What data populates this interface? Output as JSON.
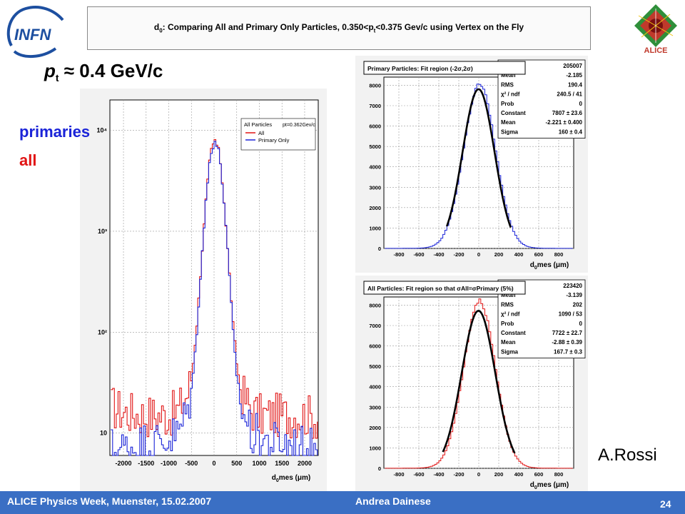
{
  "header": {
    "title": "d0: Comparing All and Primary Only Particles, 0.350<pt<0.375 Gev/c using Vertex on the Fly",
    "title_parts": {
      "d": "d",
      "d_sub": "0",
      "t1": ": Comparing All and Primary Only Particles, 0.350<p",
      "t_sub": "t",
      "t2": "<0.375 Gev/c using Vertex on the Fly"
    },
    "logo_left": "INFN",
    "logo_right": "ALICE"
  },
  "labels": {
    "pt_p": "p",
    "pt_sub": "t",
    "pt_rest": " ≈ 0.4 GeV/c",
    "primaries": "primaries",
    "all": "all",
    "author": "A.Rossi"
  },
  "footer": {
    "left": "ALICE Physics Week, Muenster, 15.02.2007",
    "mid": "Andrea Dainese",
    "page": "24"
  },
  "colors": {
    "primary": "#1a23d8",
    "all": "#e11414",
    "fit": "#000000",
    "footer": "#3a6fc4"
  },
  "chart_data": [
    {
      "type": "line",
      "log_y": true,
      "xlabel": "d0mes (μm)",
      "xlim": [
        -2300,
        2300
      ],
      "ylim": [
        6,
        20000
      ],
      "xticks": [
        -2000,
        -1500,
        -1000,
        -500,
        0,
        500,
        1000,
        1500,
        2000
      ],
      "yticks": [
        10,
        100,
        1000,
        10000
      ],
      "ytick_labels": [
        "10",
        "10²",
        "10³",
        "10⁴"
      ],
      "grid": true,
      "legend": {
        "title": "All Particles",
        "pt_note": "pt=0.362Gev/c",
        "entries": [
          "All",
          "Primary Only"
        ],
        "placement": "top-right"
      },
      "series": [
        {
          "name": "All",
          "x": [
            -2250,
            -2000,
            -1500,
            -1200,
            -1000,
            -800,
            -600,
            -500,
            -400,
            -300,
            -200,
            -100,
            0,
            100,
            200,
            300,
            400,
            500,
            600,
            800,
            1000,
            1200,
            1500,
            2000,
            2250
          ],
          "values": [
            18,
            16,
            15,
            15,
            15,
            17,
            25,
            40,
            120,
            500,
            2000,
            6000,
            8000,
            6000,
            2000,
            500,
            120,
            40,
            25,
            17,
            15,
            15,
            15,
            15,
            14
          ]
        },
        {
          "name": "Primary Only",
          "x": [
            -2250,
            -2000,
            -1500,
            -1200,
            -1000,
            -800,
            -600,
            -500,
            -400,
            -300,
            -200,
            -100,
            0,
            100,
            200,
            300,
            400,
            500,
            600,
            800,
            1000,
            1200,
            1500,
            2000,
            2250
          ],
          "values": [
            7,
            7,
            8,
            8,
            9,
            10,
            17,
            30,
            100,
            480,
            1950,
            5900,
            7800,
            5900,
            1950,
            480,
            100,
            30,
            17,
            10,
            9,
            8,
            8,
            7,
            7
          ]
        }
      ]
    },
    {
      "type": "line",
      "title": "Primary Particles: Fit region (-2σ,2σ)",
      "xlabel": "d0mes (μm)",
      "xlim": [
        -950,
        950
      ],
      "ylim": [
        0,
        8400
      ],
      "xticks": [
        -800,
        -600,
        -400,
        -200,
        0,
        200,
        400,
        600,
        800
      ],
      "yticks": [
        0,
        1000,
        2000,
        3000,
        4000,
        5000,
        6000,
        7000,
        8000
      ],
      "grid": true,
      "stats": [
        [
          "Entries",
          "205007"
        ],
        [
          "Mean",
          "-2.185"
        ],
        [
          "RMS",
          "190.4"
        ],
        [
          "χ² / ndf",
          "240.5 / 41"
        ],
        [
          "Prob",
          "0"
        ],
        [
          "Constant",
          "7807 ± 23.6"
        ],
        [
          "Mean",
          "-2.221 ± 0.400"
        ],
        [
          "Sigma",
          "160 ± 0.4"
        ]
      ],
      "histogram": {
        "name": "Primary",
        "mean": -2.185,
        "sigma": 160,
        "amplitude": 7950
      },
      "fit": {
        "name": "Gaussian fit",
        "constant": 7807,
        "mean": -2.221,
        "sigma": 160,
        "range": [
          -320,
          320
        ]
      }
    },
    {
      "type": "line",
      "title": "All Particles: Fit region so that σAll=σPrimary (5%)",
      "xlabel": "d0mes (μm)",
      "xlim": [
        -950,
        950
      ],
      "ylim": [
        0,
        8400
      ],
      "xticks": [
        -800,
        -600,
        -400,
        -200,
        0,
        200,
        400,
        600,
        800
      ],
      "yticks": [
        0,
        1000,
        2000,
        3000,
        4000,
        5000,
        6000,
        7000,
        8000
      ],
      "grid": true,
      "stats": [
        [
          "Entries",
          "223420"
        ],
        [
          "Mean",
          "-3.139"
        ],
        [
          "RMS",
          "202"
        ],
        [
          "χ² / ndf",
          "1090 / 53"
        ],
        [
          "Prob",
          "0"
        ],
        [
          "Constant",
          "7722 ± 22.7"
        ],
        [
          "Mean",
          "-2.88 ± 0.39"
        ],
        [
          "Sigma",
          "167.7 ± 0.3"
        ]
      ],
      "histogram": {
        "name": "All",
        "mean": -3.139,
        "sigma": 158,
        "amplitude": 8150
      },
      "fit": {
        "name": "Gaussian fit",
        "constant": 7722,
        "mean": -2.88,
        "sigma": 167.7,
        "range": [
          -360,
          360
        ]
      }
    }
  ]
}
